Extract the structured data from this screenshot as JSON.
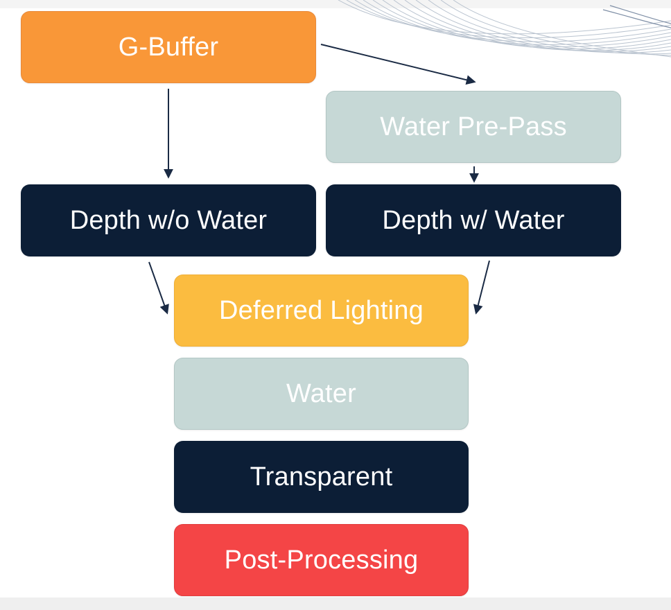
{
  "diagram": {
    "nodes": {
      "g_buffer": "G-Buffer",
      "water_pre_pass": "Water Pre-Pass",
      "depth_without_water": "Depth w/o Water",
      "depth_with_water": "Depth w/ Water",
      "deferred_lighting": "Deferred Lighting",
      "water": "Water",
      "transparent": "Transparent",
      "post_processing": "Post-Processing"
    },
    "edges": [
      {
        "from": "G-Buffer",
        "to": "Water Pre-Pass"
      },
      {
        "from": "G-Buffer",
        "to": "Depth w/o Water"
      },
      {
        "from": "Water Pre-Pass",
        "to": "Depth w/ Water"
      },
      {
        "from": "Depth w/o Water",
        "to": "Deferred Lighting"
      },
      {
        "from": "Depth w/ Water",
        "to": "Deferred Lighting"
      }
    ],
    "colors": {
      "orange": "#f99738",
      "light_teal": "#c6d8d6",
      "navy": "#0c1e36",
      "amber": "#fbbc40",
      "red": "#f44546",
      "arrow": "#1a2a44"
    }
  }
}
